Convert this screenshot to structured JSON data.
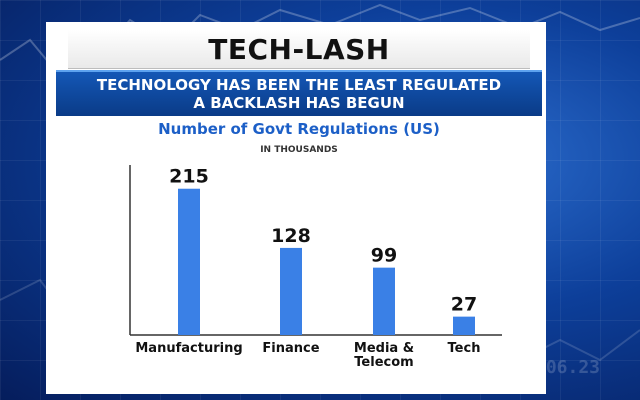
{
  "header": {
    "title": "TECH-LASH",
    "subtitle_line1": "TECHNOLOGY HAS BEEN THE LEAST REGULATED",
    "subtitle_line2": "A BACKLASH HAS BEGUN"
  },
  "background": {
    "ticker_text": "06.23"
  },
  "colors": {
    "bar": "#3a80e6",
    "subtitle_bar": "#0a3b87",
    "chart_title": "#1c5fc7"
  },
  "chart_data": {
    "type": "bar",
    "title": "Number of Govt Regulations (US)",
    "subtitle": "IN THOUSANDS",
    "categories": [
      [
        "Manufacturing"
      ],
      [
        "Finance"
      ],
      [
        "Media &",
        "Telecom"
      ],
      [
        "Tech"
      ]
    ],
    "values": [
      215,
      128,
      99,
      27
    ],
    "xlabel": "",
    "ylabel": "",
    "ylim": [
      0,
      240
    ],
    "grid": false,
    "legend": "none"
  }
}
